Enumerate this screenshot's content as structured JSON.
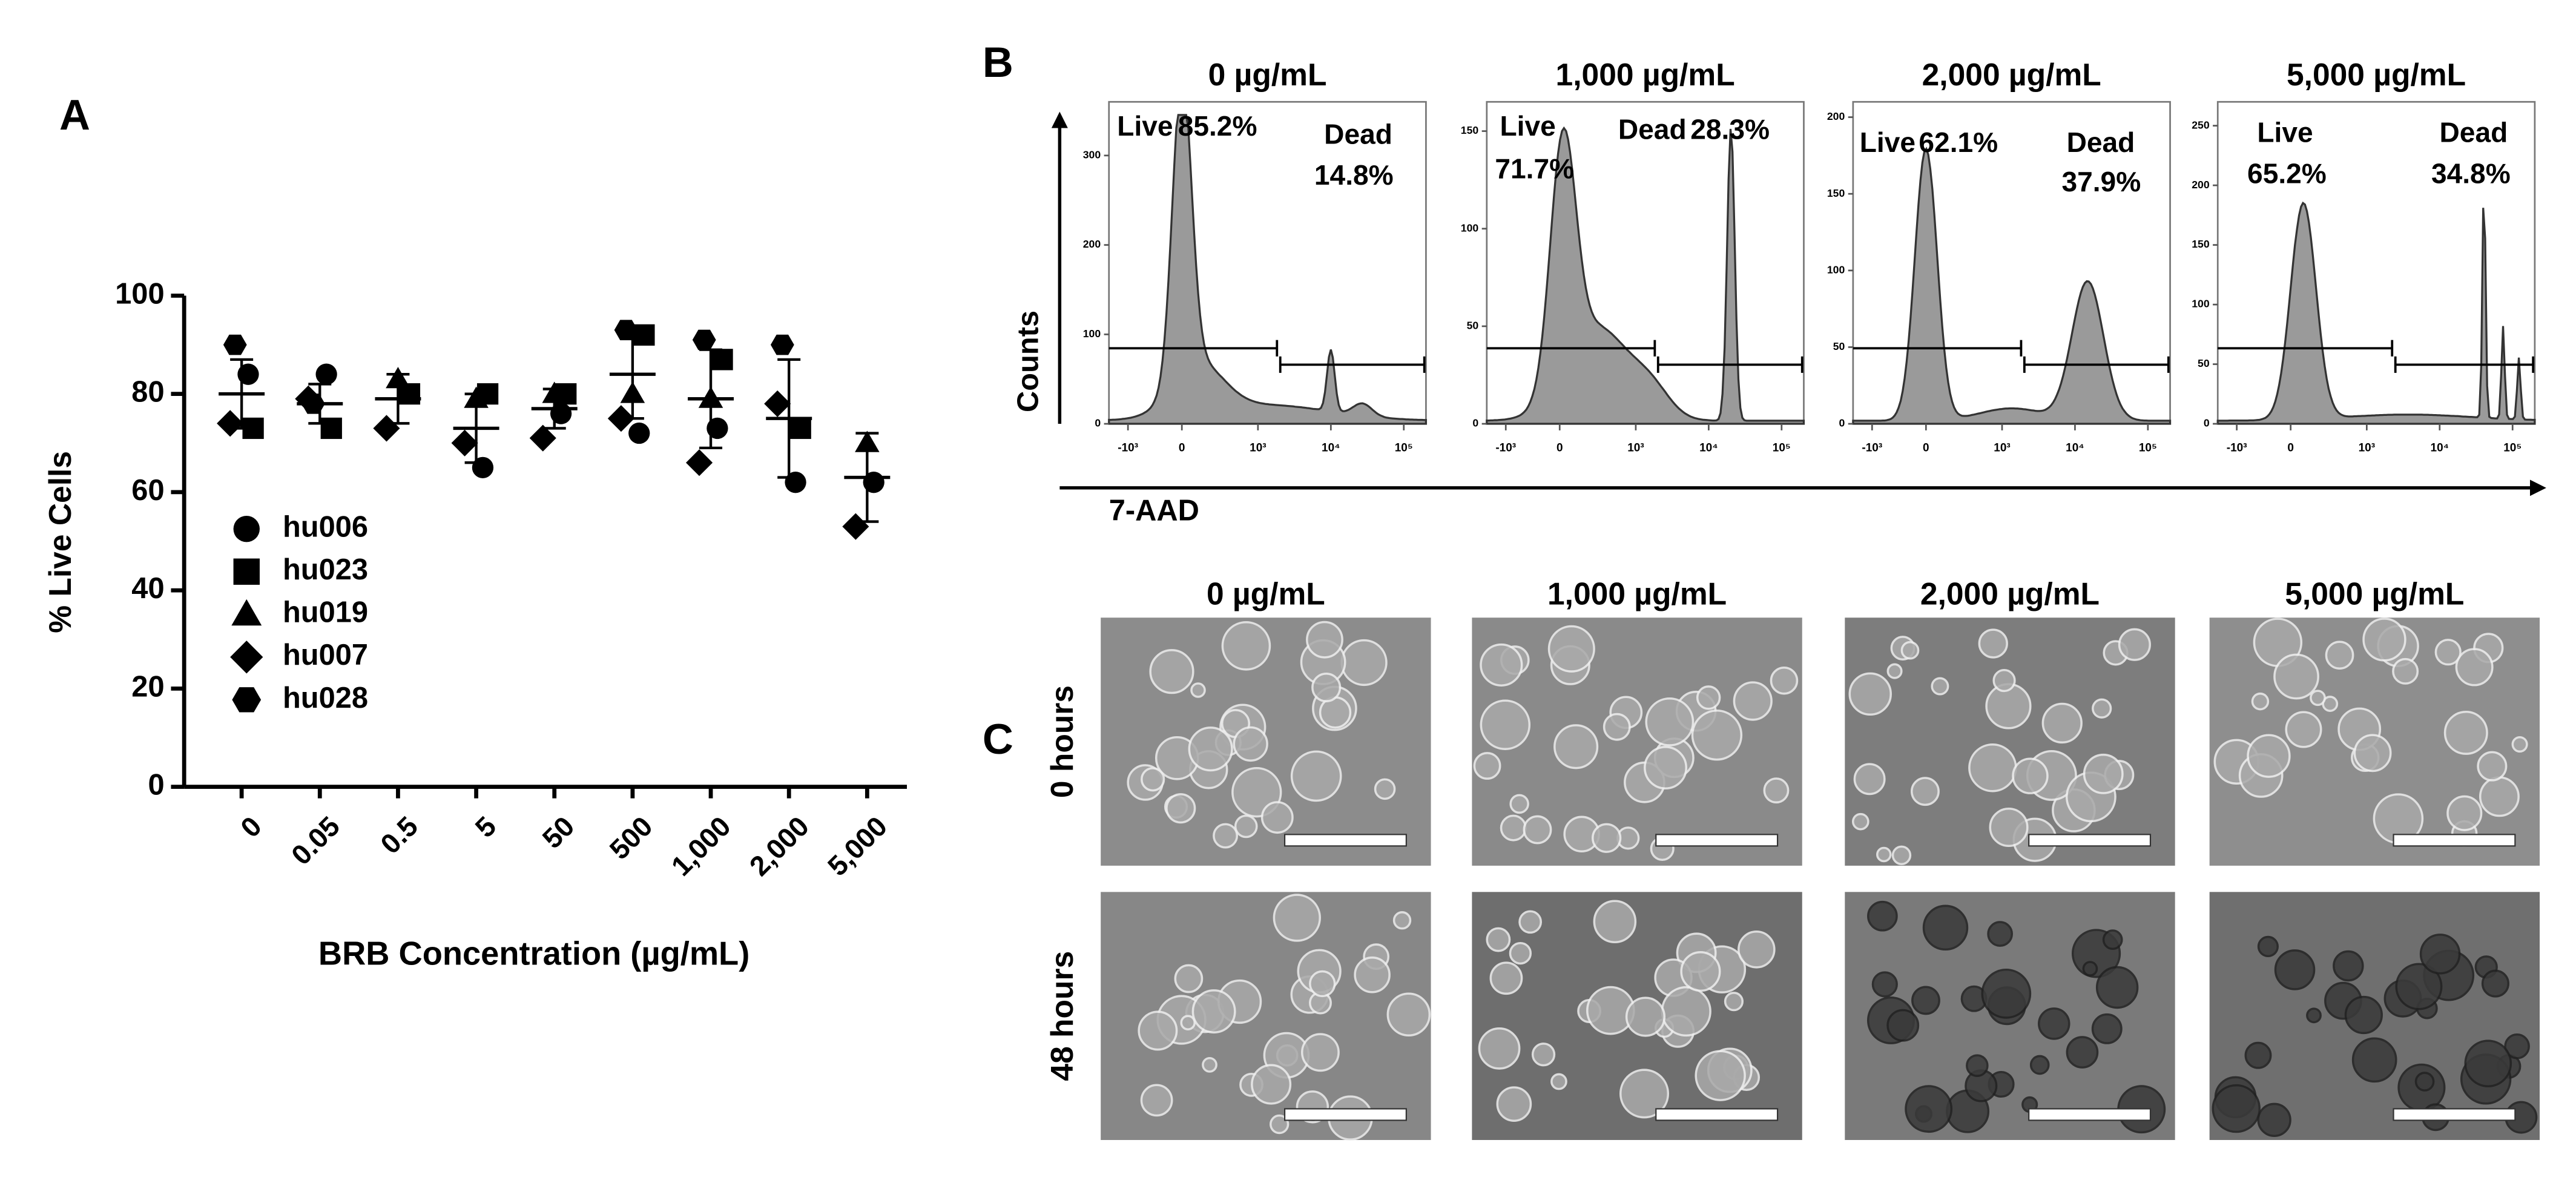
{
  "chart_data": [
    {
      "type": "dot",
      "panel_label": "A",
      "y_label": "% Live Cells",
      "x_label": "BRB Concentration (µg/mL)",
      "categories": [
        "0",
        "0.05",
        "0.5",
        "5",
        "50",
        "500",
        "1,000",
        "2,000",
        "5,000"
      ],
      "ylim": [
        0,
        100
      ],
      "yticks": [
        0,
        20,
        40,
        60,
        80,
        100
      ],
      "series": [
        {
          "name": "hu006",
          "marker": "circle",
          "color": "#000000",
          "values": [
            84,
            84,
            null,
            65,
            76,
            72,
            73,
            62,
            62
          ]
        },
        {
          "name": "hu023",
          "marker": "square",
          "color": "#000000",
          "values": [
            73,
            73,
            80,
            80,
            80,
            92,
            87,
            73,
            null
          ]
        },
        {
          "name": "hu019",
          "marker": "triangle",
          "color": "#000000",
          "values": [
            null,
            null,
            83,
            79,
            80,
            80,
            79,
            null,
            70
          ]
        },
        {
          "name": "hu007",
          "marker": "diamond",
          "color": "#000000",
          "values": [
            74,
            79,
            73,
            70,
            71,
            75,
            66,
            78,
            53
          ]
        },
        {
          "name": "hu028",
          "marker": "hexagon",
          "color": "#000000",
          "values": [
            90,
            78,
            null,
            null,
            null,
            93,
            91,
            90,
            null
          ]
        }
      ],
      "mean": [
        80,
        78,
        79,
        73,
        77,
        84,
        79,
        75,
        63
      ],
      "sd": [
        7,
        4,
        5,
        7,
        4,
        9,
        10,
        12,
        9
      ]
    },
    {
      "type": "flow",
      "panel_label": "B",
      "y_label": "Counts",
      "x_label": "7-AAD",
      "xtick_labels": [
        "-10³",
        "0",
        "10³",
        "10⁴",
        "10⁵"
      ],
      "panels": [
        {
          "title": "0 µg/mL",
          "ylim": [
            0,
            360
          ],
          "yticks": [
            0,
            100,
            200,
            300
          ],
          "live_label": "Live",
          "live": "85.2%",
          "dead_label": "Dead",
          "dead": "14.8%"
        },
        {
          "title": "1,000 µg/mL",
          "ylim": [
            0,
            165
          ],
          "yticks": [
            0,
            50,
            100,
            150
          ],
          "live_label": "Live",
          "live": "71.7%",
          "dead_label": "Dead",
          "dead": "28.3%"
        },
        {
          "title": "2,000 µg/mL",
          "ylim": [
            0,
            210
          ],
          "yticks": [
            0,
            50,
            100,
            150,
            200
          ],
          "live_label": "Live",
          "live": "62.1%",
          "dead_label": "Dead",
          "dead": "37.9%"
        },
        {
          "title": "5,000 µg/mL",
          "ylim": [
            0,
            270
          ],
          "yticks": [
            0,
            50,
            100,
            150,
            200,
            250
          ],
          "live_label": "Live",
          "live": "65.2%",
          "dead_label": "Dead",
          "dead": "34.8%"
        }
      ]
    }
  ],
  "micrographs": {
    "panel_label": "C",
    "columns": [
      "0 µg/mL",
      "1,000 µg/mL",
      "2,000 µg/mL",
      "5,000 µg/mL"
    ],
    "rows": [
      "0 hours",
      "48 hours"
    ]
  }
}
